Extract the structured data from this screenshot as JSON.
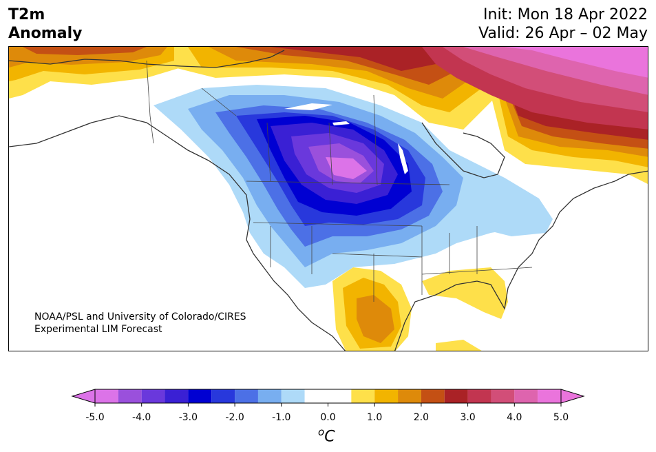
{
  "title": {
    "line1": "T2m",
    "line2": "Anomaly"
  },
  "dates": {
    "init": "Init: Mon 18 Apr 2022",
    "valid": "Valid: 26 Apr – 02 May"
  },
  "credit": {
    "line1": "NOAA/PSL and University of Colorado/CIRES",
    "line2": "Experimental LIM Forecast"
  },
  "colorbar": {
    "unit_symbol": "C",
    "unit_superscript": "o",
    "ticks": [
      "-5.0",
      "-4.0",
      "-3.0",
      "-2.0",
      "-1.0",
      "0.0",
      "1.0",
      "2.0",
      "3.0",
      "4.0",
      "5.0"
    ],
    "levels": [
      -5.0,
      -4.5,
      -4.0,
      -3.5,
      -3.0,
      -2.5,
      -2.0,
      -1.5,
      -1.0,
      -0.5,
      0.5,
      1.0,
      1.5,
      2.0,
      2.5,
      3.0,
      3.5,
      4.0,
      4.5,
      5.0
    ],
    "colors": [
      "#dc73e8",
      "#9a50dc",
      "#6a38dc",
      "#3a20d4",
      "#0000d2",
      "#2838dc",
      "#4c70e6",
      "#78aef0",
      "#aedaf8",
      "#ffffff",
      "#fee04a",
      "#f2b400",
      "#de8a0a",
      "#c45014",
      "#aa2226",
      "#c23550",
      "#d24e78",
      "#de64ae",
      "#ea74dc"
    ],
    "extend_low_color": "#dc73e8",
    "extend_high_color": "#ea74dc"
  }
}
